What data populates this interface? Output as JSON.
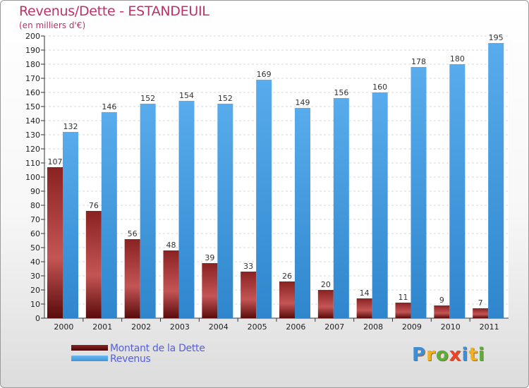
{
  "chart_data": {
    "type": "bar",
    "title": "Revenus/Dette - ESTANDEUIL",
    "subtitle": "(en milliers d'€)",
    "categories": [
      "2000",
      "2001",
      "2002",
      "2003",
      "2004",
      "2005",
      "2006",
      "2007",
      "2008",
      "2009",
      "2010",
      "2011"
    ],
    "series": [
      {
        "name": "Montant de la Dette",
        "color": "#7a1c1c",
        "values": [
          107,
          76,
          56,
          48,
          39,
          33,
          26,
          20,
          14,
          11,
          9,
          7
        ]
      },
      {
        "name": "Revenus",
        "color": "#4ea6e6",
        "values": [
          132,
          146,
          152,
          154,
          152,
          169,
          149,
          156,
          160,
          178,
          180,
          195
        ]
      }
    ],
    "ylim": [
      0,
      200
    ],
    "yticks": [
      0,
      10,
      20,
      30,
      40,
      50,
      60,
      70,
      80,
      90,
      100,
      110,
      120,
      130,
      140,
      150,
      160,
      170,
      180,
      190,
      200
    ],
    "grid": true,
    "legend_position": "bottom-left"
  },
  "brand": {
    "letters": [
      "P",
      "r",
      "o",
      "x",
      "i",
      "t",
      "i"
    ],
    "colors": [
      "#3a8fd8",
      "#f0b21c",
      "#57b03a",
      "#e8452c",
      "#3a8fd8",
      "#f0b21c",
      "#57b03a"
    ]
  }
}
